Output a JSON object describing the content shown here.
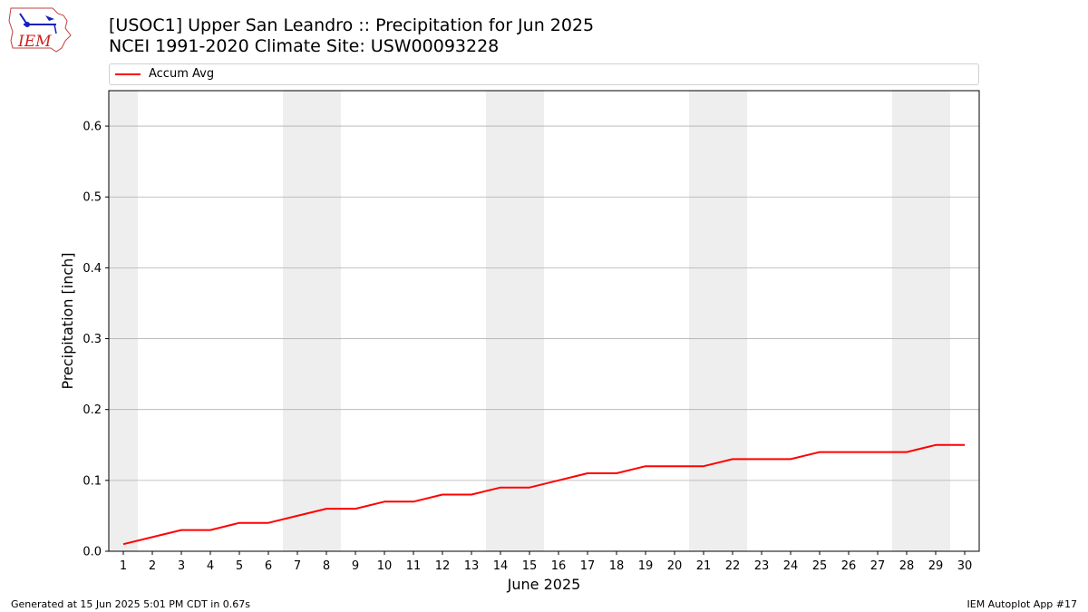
{
  "header": {
    "title_line1": "[USOC1] Upper San Leandro :: Precipitation for Jun 2025",
    "title_line2": "NCEI 1991-2020 Climate Site: USW00093228",
    "logo_text": "IEM"
  },
  "footer": {
    "generated": "Generated at 15 Jun 2025 5:01 PM CDT in 0.67s",
    "app": "IEM Autoplot App #17"
  },
  "colors": {
    "series": "#ff0000",
    "weekend_band": "#eeeeee",
    "grid": "#b0b0b0"
  },
  "chart_data": {
    "type": "line",
    "xlabel": "June 2025",
    "ylabel": "Precipitation [inch]",
    "ylim": [
      0,
      0.65
    ],
    "yticks": [
      0.0,
      0.1,
      0.2,
      0.3,
      0.4,
      0.5,
      0.6
    ],
    "ytick_labels": [
      "0.0",
      "0.1",
      "0.2",
      "0.3",
      "0.4",
      "0.5",
      "0.6"
    ],
    "xlim": [
      0.5,
      30.5
    ],
    "x": [
      1,
      2,
      3,
      4,
      5,
      6,
      7,
      8,
      9,
      10,
      11,
      12,
      13,
      14,
      15,
      16,
      17,
      18,
      19,
      20,
      21,
      22,
      23,
      24,
      25,
      26,
      27,
      28,
      29,
      30
    ],
    "grid": "horizontal",
    "legend_position": "top",
    "weekend_bands": [
      [
        0.5,
        1.5
      ],
      [
        6.5,
        8.5
      ],
      [
        13.5,
        15.5
      ],
      [
        20.5,
        22.5
      ],
      [
        27.5,
        29.5
      ]
    ],
    "series": [
      {
        "name": "Accum Avg",
        "values": [
          0.01,
          0.02,
          0.03,
          0.03,
          0.04,
          0.04,
          0.05,
          0.06,
          0.06,
          0.07,
          0.07,
          0.08,
          0.08,
          0.09,
          0.09,
          0.1,
          0.11,
          0.11,
          0.12,
          0.12,
          0.12,
          0.13,
          0.13,
          0.13,
          0.14,
          0.14,
          0.14,
          0.14,
          0.15,
          0.15
        ]
      }
    ]
  }
}
